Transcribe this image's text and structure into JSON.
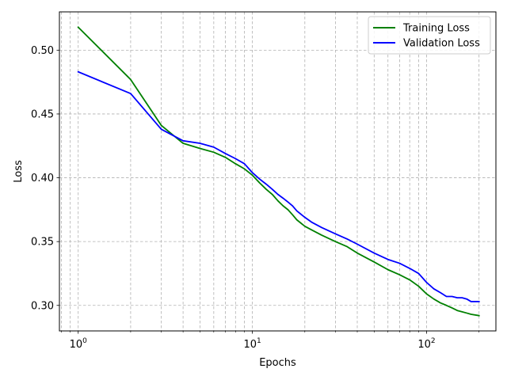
{
  "chart_data": {
    "type": "line",
    "title": "",
    "xlabel": "Epochs",
    "ylabel": "Loss",
    "xscale": "log",
    "xlim": [
      0.78,
      250
    ],
    "ylim": [
      0.28,
      0.53
    ],
    "grid": true,
    "legend_position": "top-right",
    "x_ticks": [
      {
        "value": 1,
        "base": "10",
        "exp": "0"
      },
      {
        "value": 10,
        "base": "10",
        "exp": "1"
      },
      {
        "value": 100,
        "base": "10",
        "exp": "2"
      }
    ],
    "y_ticks": [
      {
        "value": 0.3,
        "label": "0.30"
      },
      {
        "value": 0.35,
        "label": "0.35"
      },
      {
        "value": 0.4,
        "label": "0.40"
      },
      {
        "value": 0.45,
        "label": "0.45"
      },
      {
        "value": 0.5,
        "label": "0.50"
      }
    ],
    "series": [
      {
        "name": "Training Loss",
        "color": "#008000",
        "x": [
          1,
          2,
          3,
          4,
          5,
          6,
          7,
          8,
          9,
          10,
          11,
          12,
          13,
          14,
          15,
          16,
          17,
          18,
          20,
          22,
          25,
          30,
          35,
          40,
          50,
          60,
          70,
          80,
          90,
          100,
          110,
          120,
          130,
          140,
          150,
          160,
          170,
          180,
          200
        ],
        "y": [
          0.518,
          0.477,
          0.441,
          0.427,
          0.423,
          0.42,
          0.416,
          0.411,
          0.407,
          0.402,
          0.396,
          0.391,
          0.387,
          0.382,
          0.378,
          0.375,
          0.371,
          0.367,
          0.362,
          0.359,
          0.355,
          0.35,
          0.346,
          0.341,
          0.334,
          0.328,
          0.324,
          0.32,
          0.315,
          0.309,
          0.305,
          0.302,
          0.3,
          0.298,
          0.296,
          0.295,
          0.294,
          0.293,
          0.292
        ]
      },
      {
        "name": "Validation Loss",
        "color": "#0000ff",
        "x": [
          1,
          2,
          3,
          4,
          5,
          6,
          7,
          8,
          9,
          10,
          11,
          12,
          13,
          14,
          15,
          16,
          17,
          18,
          20,
          22,
          25,
          30,
          35,
          40,
          50,
          60,
          70,
          80,
          90,
          100,
          110,
          120,
          130,
          140,
          150,
          160,
          170,
          180,
          200
        ],
        "y": [
          0.483,
          0.466,
          0.438,
          0.429,
          0.427,
          0.424,
          0.419,
          0.415,
          0.411,
          0.404,
          0.399,
          0.395,
          0.391,
          0.387,
          0.384,
          0.381,
          0.378,
          0.374,
          0.369,
          0.365,
          0.361,
          0.356,
          0.352,
          0.348,
          0.341,
          0.336,
          0.333,
          0.329,
          0.325,
          0.318,
          0.313,
          0.31,
          0.307,
          0.307,
          0.306,
          0.306,
          0.305,
          0.303,
          0.303
        ]
      }
    ]
  }
}
